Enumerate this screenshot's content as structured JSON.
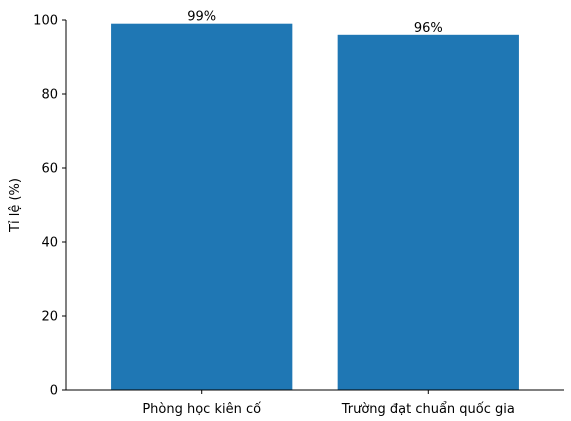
{
  "chart_data": {
    "type": "bar",
    "categories": [
      "Phòng học kiên cố",
      "Trường đạt chuẩn quốc gia"
    ],
    "values": [
      99,
      96
    ],
    "data_labels": [
      "99%",
      "96%"
    ],
    "ylabel": "Tỉ lệ (%)",
    "xlabel": "",
    "title": "",
    "ylim": [
      0,
      100
    ],
    "yticks": [
      0,
      20,
      40,
      60,
      80,
      100
    ],
    "grid": false,
    "bar_color": "#1f77b4"
  }
}
